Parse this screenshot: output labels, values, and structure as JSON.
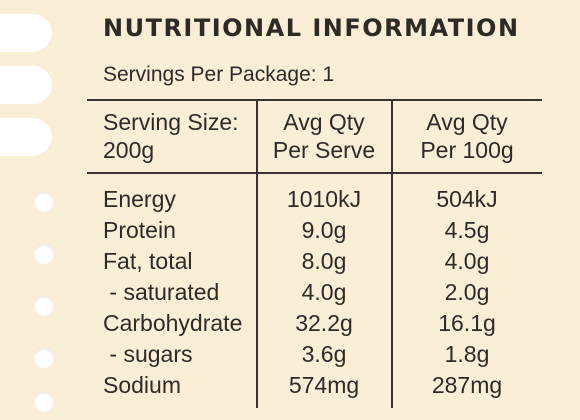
{
  "title": "NUTRITIONAL INFORMATION",
  "servings_per_package": "Servings Per Package: 1",
  "headers": {
    "serving_size_line1": "Serving Size:",
    "serving_size_line2": "200g",
    "per_serve_line1": "Avg Qty",
    "per_serve_line2": "Per Serve",
    "per_100g_line1": "Avg Qty",
    "per_100g_line2": "Per 100g"
  },
  "rows": [
    {
      "label": "Energy",
      "per_serve": "1010kJ",
      "per_100g": "504kJ"
    },
    {
      "label": "Protein",
      "per_serve": "9.0g",
      "per_100g": "4.5g"
    },
    {
      "label": "Fat, total",
      "per_serve": "8.0g",
      "per_100g": "4.0g"
    },
    {
      "label": " - saturated",
      "per_serve": "4.0g",
      "per_100g": "2.0g"
    },
    {
      "label": "Carbohydrate",
      "per_serve": "32.2g",
      "per_100g": "16.1g"
    },
    {
      "label": " - sugars",
      "per_serve": "3.6g",
      "per_100g": "1.8g"
    },
    {
      "label": "Sodium",
      "per_serve": "574mg",
      "per_100g": "287mg"
    }
  ],
  "colors": {
    "paper": "#fbeed7",
    "ink": "#2e2a26",
    "holes": "#ffffff"
  }
}
